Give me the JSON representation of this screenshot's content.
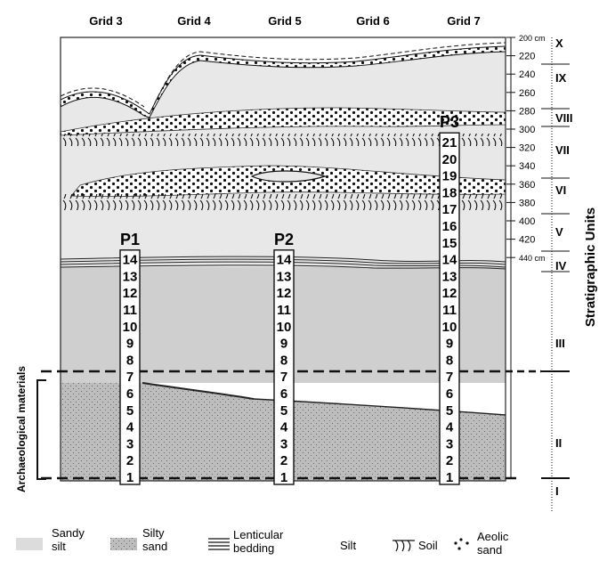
{
  "grids": [
    "Grid 3",
    "Grid 4",
    "Grid 5",
    "Grid 6",
    "Grid 7"
  ],
  "depth_ticks": [
    "200 cm",
    "220",
    "240",
    "260",
    "280",
    "300",
    "320",
    "340",
    "360",
    "380",
    "400",
    "420",
    "440 cm"
  ],
  "units": [
    "X",
    "IX",
    "VIII",
    "VII",
    "VI",
    "V",
    "IV",
    "III",
    "II",
    "I"
  ],
  "units_axis_label": "Stratigraphic Units",
  "archaeo_label": "Archaeological materials",
  "profiles": [
    {
      "label": "P1",
      "samples": [
        "14",
        "13",
        "12",
        "11",
        "10",
        "9",
        "8",
        "7",
        "6",
        "5",
        "4",
        "3",
        "2",
        "1"
      ]
    },
    {
      "label": "P2",
      "samples": [
        "14",
        "13",
        "12",
        "11",
        "10",
        "9",
        "8",
        "7",
        "6",
        "5",
        "4",
        "3",
        "2",
        "1"
      ]
    },
    {
      "label": "P3",
      "samples": [
        "21",
        "20",
        "19",
        "18",
        "17",
        "16",
        "15",
        "14",
        "13",
        "12",
        "11",
        "10",
        "9",
        "8",
        "7",
        "6",
        "5",
        "4",
        "3",
        "2",
        "1"
      ]
    }
  ],
  "legend": {
    "sandy_silt": "Sandy silt",
    "silty_sand": "Silty sand",
    "lenticular": "Lenticular bedding",
    "silt": "Silt",
    "soil": "Soil",
    "aeolic": "Aeolic sand"
  },
  "colors": {
    "sandy_silt": "#e8e8e8",
    "silty_sand": "#cfcfcf",
    "silty_sand_dark": "#bdbdbd"
  }
}
